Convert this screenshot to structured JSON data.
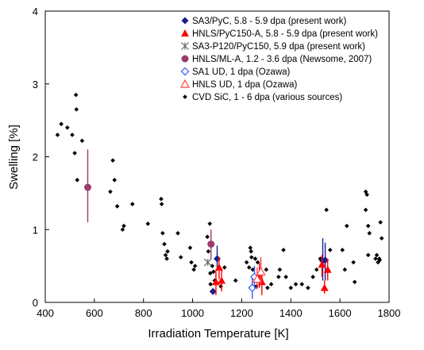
{
  "chart_data": {
    "type": "scatter",
    "title": "",
    "xlabel": "Irradiation Temperature [K]",
    "ylabel": "Swelling [%]",
    "xlim": [
      400,
      1800
    ],
    "ylim": [
      0,
      4
    ],
    "xticks": [
      "400",
      "600",
      "800",
      "1000",
      "1200",
      "1400",
      "1600",
      "1800"
    ],
    "yticks": [
      "0",
      "1",
      "2",
      "3",
      "4"
    ],
    "grid": false,
    "legend_position": "top-right",
    "series": [
      {
        "name": "SA3/PyC, 5.8 - 5.9 dpa (present work)",
        "color": "#1c1c8c",
        "marker": "diamond-filled",
        "points": [
          {
            "x": 1083,
            "y": 0.15
          },
          {
            "x": 1100,
            "y": 0.6,
            "lo": 0.45,
            "hi": 0.78
          },
          {
            "x": 1530,
            "y": 0.57,
            "lo": 0.3,
            "hi": 0.88
          },
          {
            "x": 1540,
            "y": 0.58,
            "lo": 0.3,
            "hi": 0.82
          }
        ]
      },
      {
        "name": "HNLS/PyC150-A, 5.8 - 5.9 dpa (present work)",
        "color": "#ff0000",
        "marker": "triangle-filled",
        "points": [
          {
            "x": 1095,
            "y": 0.28,
            "lo": 0.1,
            "hi": 0.45
          },
          {
            "x": 1108,
            "y": 0.48,
            "lo": 0.32,
            "hi": 0.62
          },
          {
            "x": 1118,
            "y": 0.3,
            "lo": 0.15,
            "hi": 0.45
          },
          {
            "x": 1272,
            "y": 0.35,
            "lo": 0.2,
            "hi": 0.55
          },
          {
            "x": 1282,
            "y": 0.28,
            "lo": 0.1,
            "hi": 0.45
          },
          {
            "x": 1527,
            "y": 0.52,
            "lo": 0.35,
            "hi": 0.65
          },
          {
            "x": 1537,
            "y": 0.2,
            "lo": 0.12,
            "hi": 0.3
          },
          {
            "x": 1550,
            "y": 0.45,
            "lo": 0.3,
            "hi": 0.6
          }
        ]
      },
      {
        "name": "SA3-P120/PyC150, 5.9 dpa (present work)",
        "color": "#666666",
        "marker": "asterisk",
        "points": [
          {
            "x": 1062,
            "y": 0.55
          }
        ]
      },
      {
        "name": "HNLS/ML-A, 1.2 - 3.6 dpa (Newsome, 2007)",
        "color": "#9c3b6b",
        "marker": "circle-filled",
        "points": [
          {
            "x": 573,
            "y": 1.58,
            "lo": 1.1,
            "hi": 2.1
          },
          {
            "x": 1075,
            "y": 0.8,
            "lo": 0.6,
            "hi": 1.0
          }
        ]
      },
      {
        "name": "SA1 UD, 1 dpa (Ozawa)",
        "color": "#3355ff",
        "marker": "diamond-open",
        "points": [
          {
            "x": 1243,
            "y": 0.2,
            "lo": 0.05,
            "hi": 0.35
          },
          {
            "x": 1252,
            "y": 0.35,
            "lo": 0.2,
            "hi": 0.5
          }
        ]
      },
      {
        "name": "HNLS UD, 1 dpa (Ozawa)",
        "color": "#ff4444",
        "marker": "triangle-open",
        "points": [
          {
            "x": 1263,
            "y": 0.32,
            "lo": 0.18,
            "hi": 0.48
          },
          {
            "x": 1278,
            "y": 0.42,
            "lo": 0.25,
            "hi": 0.62
          }
        ]
      },
      {
        "name": "CVD SiC, 1 - 6 dpa (various sources)",
        "color": "#000000",
        "marker": "diamond-small",
        "points": [
          {
            "x": 450,
            "y": 2.3
          },
          {
            "x": 465,
            "y": 2.45
          },
          {
            "x": 490,
            "y": 2.4
          },
          {
            "x": 510,
            "y": 2.3
          },
          {
            "x": 520,
            "y": 2.05
          },
          {
            "x": 525,
            "y": 2.85
          },
          {
            "x": 527,
            "y": 2.65
          },
          {
            "x": 530,
            "y": 1.68
          },
          {
            "x": 550,
            "y": 2.22
          },
          {
            "x": 665,
            "y": 1.52
          },
          {
            "x": 675,
            "y": 1.95
          },
          {
            "x": 682,
            "y": 1.68
          },
          {
            "x": 693,
            "y": 1.32
          },
          {
            "x": 715,
            "y": 1.0
          },
          {
            "x": 720,
            "y": 1.05
          },
          {
            "x": 755,
            "y": 1.35
          },
          {
            "x": 818,
            "y": 1.08
          },
          {
            "x": 872,
            "y": 1.42
          },
          {
            "x": 874,
            "y": 1.35
          },
          {
            "x": 878,
            "y": 0.95
          },
          {
            "x": 885,
            "y": 0.8
          },
          {
            "x": 890,
            "y": 0.65
          },
          {
            "x": 895,
            "y": 0.6
          },
          {
            "x": 898,
            "y": 0.7
          },
          {
            "x": 940,
            "y": 0.95
          },
          {
            "x": 952,
            "y": 0.62
          },
          {
            "x": 990,
            "y": 0.75
          },
          {
            "x": 995,
            "y": 0.55
          },
          {
            "x": 1005,
            "y": 0.45
          },
          {
            "x": 1010,
            "y": 0.5
          },
          {
            "x": 1060,
            "y": 0.9
          },
          {
            "x": 1064,
            "y": 0.7
          },
          {
            "x": 1070,
            "y": 1.08
          },
          {
            "x": 1072,
            "y": 0.4
          },
          {
            "x": 1073,
            "y": 0.25
          },
          {
            "x": 1080,
            "y": 0.5
          },
          {
            "x": 1085,
            "y": 0.42
          },
          {
            "x": 1090,
            "y": 0.3
          },
          {
            "x": 1115,
            "y": 0.22
          },
          {
            "x": 1130,
            "y": 0.48
          },
          {
            "x": 1175,
            "y": 0.3
          },
          {
            "x": 1220,
            "y": 0.55
          },
          {
            "x": 1230,
            "y": 0.48
          },
          {
            "x": 1235,
            "y": 0.75
          },
          {
            "x": 1238,
            "y": 0.7
          },
          {
            "x": 1240,
            "y": 0.62
          },
          {
            "x": 1245,
            "y": 0.45
          },
          {
            "x": 1250,
            "y": 0.35
          },
          {
            "x": 1255,
            "y": 0.6
          },
          {
            "x": 1260,
            "y": 0.22
          },
          {
            "x": 1265,
            "y": 0.55
          },
          {
            "x": 1300,
            "y": 0.45
          },
          {
            "x": 1305,
            "y": 0.2
          },
          {
            "x": 1320,
            "y": 0.25
          },
          {
            "x": 1350,
            "y": 0.35
          },
          {
            "x": 1355,
            "y": 0.45
          },
          {
            "x": 1370,
            "y": 0.72
          },
          {
            "x": 1380,
            "y": 0.35
          },
          {
            "x": 1400,
            "y": 0.2
          },
          {
            "x": 1420,
            "y": 0.25
          },
          {
            "x": 1445,
            "y": 0.25
          },
          {
            "x": 1470,
            "y": 0.2
          },
          {
            "x": 1490,
            "y": 0.35
          },
          {
            "x": 1505,
            "y": 0.45
          },
          {
            "x": 1520,
            "y": 0.6
          },
          {
            "x": 1545,
            "y": 1.27
          },
          {
            "x": 1560,
            "y": 0.72
          },
          {
            "x": 1610,
            "y": 0.72
          },
          {
            "x": 1620,
            "y": 0.45
          },
          {
            "x": 1628,
            "y": 1.05
          },
          {
            "x": 1655,
            "y": 0.55
          },
          {
            "x": 1660,
            "y": 0.28
          },
          {
            "x": 1705,
            "y": 1.52
          },
          {
            "x": 1710,
            "y": 1.48
          },
          {
            "x": 1705,
            "y": 1.27
          },
          {
            "x": 1715,
            "y": 1.05
          },
          {
            "x": 1715,
            "y": 0.65
          },
          {
            "x": 1720,
            "y": 0.95
          },
          {
            "x": 1745,
            "y": 0.6
          },
          {
            "x": 1750,
            "y": 0.65
          },
          {
            "x": 1755,
            "y": 0.55
          },
          {
            "x": 1760,
            "y": 0.6
          },
          {
            "x": 1762,
            "y": 0.58
          },
          {
            "x": 1765,
            "y": 1.1
          },
          {
            "x": 1770,
            "y": 0.88
          }
        ]
      }
    ]
  }
}
